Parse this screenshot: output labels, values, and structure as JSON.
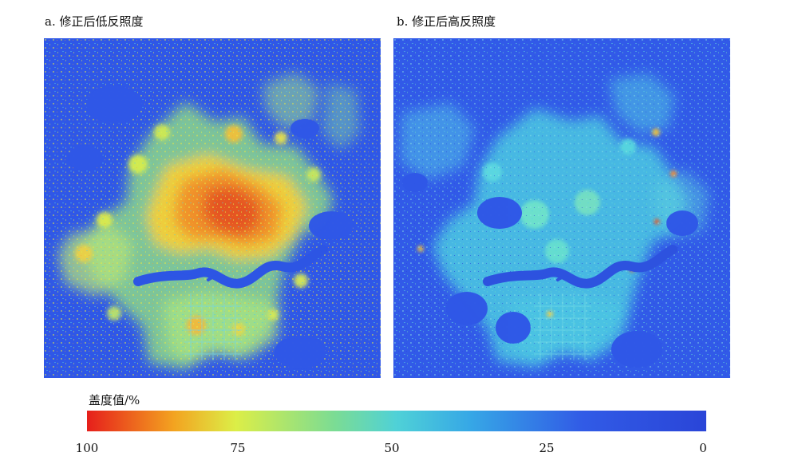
{
  "figure": {
    "panel_a_title": "a. 修正后低反照度",
    "panel_b_title": "b. 修正后高反照度",
    "legend_title": "盖度值/%",
    "legend_ticks": [
      "100",
      "75",
      "50",
      "25",
      "0"
    ]
  },
  "colors": {
    "background": "#2f57e7",
    "high": "#e61f1b",
    "upper_mid": "#f3a320",
    "mid_yellow": "#dcee47",
    "mid_green": "#7bdc94",
    "mid_cyan": "#4fd1d7",
    "low_blue": "#315be6"
  }
}
